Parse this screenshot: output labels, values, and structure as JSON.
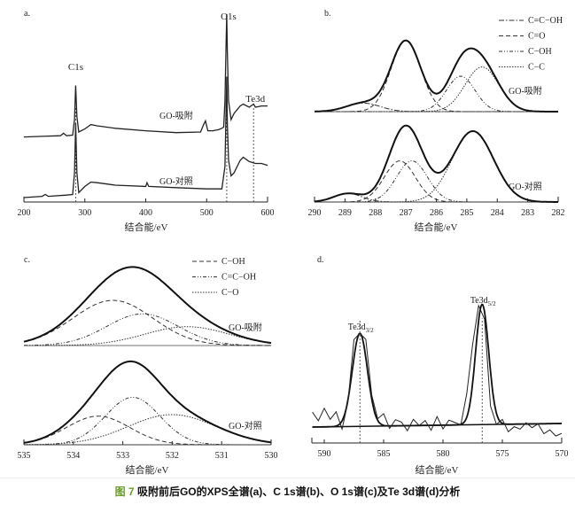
{
  "caption": {
    "figure_label": "图 7",
    "text": "吸附前后GO的XPS全谱(a)、C 1s谱(b)、O 1s谱(c)及Te 3d谱(d)分析"
  },
  "chart_data": [
    {
      "id": "a",
      "panel_label": "a.",
      "type": "line",
      "title": "",
      "xlabel": "结合能/eV",
      "ylabel": "",
      "xlim": [
        200,
        600
      ],
      "xticks": [
        200,
        300,
        400,
        500,
        600
      ],
      "grid": false,
      "peak_labels": [
        {
          "text": "C1s",
          "x": 285
        },
        {
          "text": "O1s",
          "x": 533
        },
        {
          "text": "Te3d",
          "x": 577
        }
      ],
      "reference_lines_x": [
        285,
        533,
        577
      ],
      "series": [
        {
          "name": "GO-吸附",
          "offset": 1,
          "x": [
            200,
            230,
            260,
            265,
            270,
            280,
            283,
            285,
            287,
            290,
            300,
            310,
            320,
            350,
            400,
            450,
            490,
            495,
            498,
            502,
            510,
            520,
            525,
            528,
            530,
            532,
            533,
            534,
            536,
            540,
            545,
            555,
            560,
            570,
            577,
            580,
            590,
            600
          ],
          "y": [
            0.02,
            0.03,
            0.04,
            0.08,
            0.04,
            0.05,
            0.3,
            0.85,
            0.35,
            0.1,
            0.15,
            0.22,
            0.2,
            0.16,
            0.12,
            0.09,
            0.1,
            0.22,
            0.28,
            0.12,
            0.12,
            0.14,
            0.16,
            0.18,
            0.6,
            1.6,
            2.0,
            1.4,
            0.6,
            0.3,
            0.4,
            0.52,
            0.55,
            0.5,
            0.55,
            0.5,
            0.52,
            0.52
          ]
        },
        {
          "name": "GO-对照",
          "offset": 0,
          "x": [
            200,
            230,
            235,
            240,
            270,
            280,
            283,
            285,
            287,
            290,
            300,
            310,
            320,
            350,
            400,
            402,
            405,
            450,
            500,
            525,
            530,
            532,
            533,
            534,
            536,
            540,
            545,
            555,
            560,
            570,
            580,
            590,
            600
          ],
          "y": [
            0.0,
            0.02,
            0.05,
            0.02,
            0.04,
            0.05,
            0.4,
            1.2,
            0.4,
            0.08,
            0.18,
            0.25,
            0.24,
            0.2,
            0.18,
            0.24,
            0.18,
            0.16,
            0.14,
            0.14,
            0.5,
            1.5,
            1.95,
            1.2,
            0.6,
            0.35,
            0.4,
            0.6,
            0.65,
            0.58,
            0.55,
            0.55,
            0.52
          ]
        }
      ]
    },
    {
      "id": "b",
      "panel_label": "b.",
      "type": "line",
      "xlabel": "结合能/eV",
      "xlim": [
        290,
        282
      ],
      "xticks": [
        290,
        289,
        288,
        287,
        286,
        285,
        284,
        283,
        282
      ],
      "grid": false,
      "legend": {
        "placement": "top-right",
        "entries": [
          "C=C−OH",
          "C=O",
          "C−OH",
          "C−C"
        ]
      },
      "series_labels": [
        "GO-吸附",
        "GO-对照"
      ],
      "components": {
        "GO-吸附": [
          {
            "name": "C=C−OH",
            "center": 288.4,
            "height": 0.12,
            "fwhm": 1.3
          },
          {
            "name": "C=O",
            "center": 287.0,
            "height": 1.0,
            "fwhm": 1.15
          },
          {
            "name": "C−OH",
            "center": 285.2,
            "height": 0.5,
            "fwhm": 1.1
          },
          {
            "name": "C−C",
            "center": 284.5,
            "height": 0.63,
            "fwhm": 1.3
          }
        ],
        "GO-对照": [
          {
            "name": "C=C−OH",
            "center": 288.9,
            "height": 0.12,
            "fwhm": 1.1
          },
          {
            "name": "C=O",
            "center": 287.2,
            "height": 0.58,
            "fwhm": 1.2
          },
          {
            "name": "C−OH",
            "center": 286.8,
            "height": 0.58,
            "fwhm": 1.2
          },
          {
            "name": "C−C",
            "center": 284.8,
            "height": 1.0,
            "fwhm": 1.6
          }
        ]
      }
    },
    {
      "id": "c",
      "panel_label": "c.",
      "type": "line",
      "xlabel": "结合能/eV",
      "xlim": [
        535,
        530
      ],
      "xticks": [
        535,
        534,
        533,
        532,
        531,
        530
      ],
      "grid": false,
      "legend": {
        "placement": "top-right",
        "entries": [
          "C−OH",
          "C=C−OH",
          "C−O"
        ]
      },
      "series_labels": [
        "GO-吸附",
        "GO-对照"
      ],
      "components": {
        "GO-吸附": [
          {
            "name": "C−OH",
            "center": 533.2,
            "height": 0.6,
            "fwhm": 1.9
          },
          {
            "name": "C=C−OH",
            "center": 532.6,
            "height": 0.42,
            "fwhm": 1.7
          },
          {
            "name": "C−O",
            "center": 531.7,
            "height": 0.25,
            "fwhm": 2.0
          }
        ],
        "GO-对照": [
          {
            "name": "C−OH",
            "center": 533.5,
            "height": 0.38,
            "fwhm": 1.5
          },
          {
            "name": "C=C−OH",
            "center": 532.8,
            "height": 0.63,
            "fwhm": 1.3
          },
          {
            "name": "C−O",
            "center": 532.0,
            "height": 0.4,
            "fwhm": 2.1
          }
        ]
      }
    },
    {
      "id": "d",
      "panel_label": "d.",
      "type": "line",
      "xlabel": "结合能/eV",
      "xlim": [
        591,
        570
      ],
      "xticks": [
        590,
        585,
        580,
        575,
        570
      ],
      "grid": false,
      "peak_labels": [
        {
          "text": "Te3d",
          "sub": "3/2",
          "x": 587.0
        },
        {
          "text": "Te3d",
          "sub": "5/2",
          "x": 576.7
        }
      ],
      "reference_lines_x": [
        587.0,
        576.7
      ],
      "fit_peaks": [
        {
          "center": 587.0,
          "height": 0.75,
          "fwhm": 1.5
        },
        {
          "center": 576.7,
          "height": 0.97,
          "fwhm": 1.3
        }
      ],
      "raw_noise": {
        "x": [
          591,
          590.5,
          590,
          589.5,
          589,
          588.5,
          588,
          587.5,
          587,
          586.5,
          586,
          585.5,
          585,
          584.5,
          584,
          583.5,
          583,
          582.5,
          582,
          581.5,
          581,
          580.5,
          580,
          579.5,
          579,
          578.5,
          578,
          577.5,
          577,
          576.5,
          576,
          575.5,
          575,
          574.5,
          574,
          573.5,
          573,
          572.5,
          572,
          571.5,
          571,
          570.5,
          570
        ],
        "y": [
          0.12,
          0.05,
          0.15,
          0.06,
          0.12,
          -0.02,
          0.2,
          0.7,
          0.75,
          0.7,
          0.25,
          0.06,
          0.1,
          -0.02,
          0.05,
          0.03,
          -0.04,
          0.05,
          0.0,
          0.04,
          -0.04,
          0.07,
          -0.03,
          0.04,
          0.02,
          0.0,
          0.25,
          0.65,
          0.96,
          0.85,
          0.15,
          0.0,
          0.04,
          -0.06,
          -0.02,
          -0.04,
          0.01,
          -0.03,
          0.0,
          -0.08,
          -0.05,
          -0.1,
          -0.08
        ]
      }
    }
  ]
}
